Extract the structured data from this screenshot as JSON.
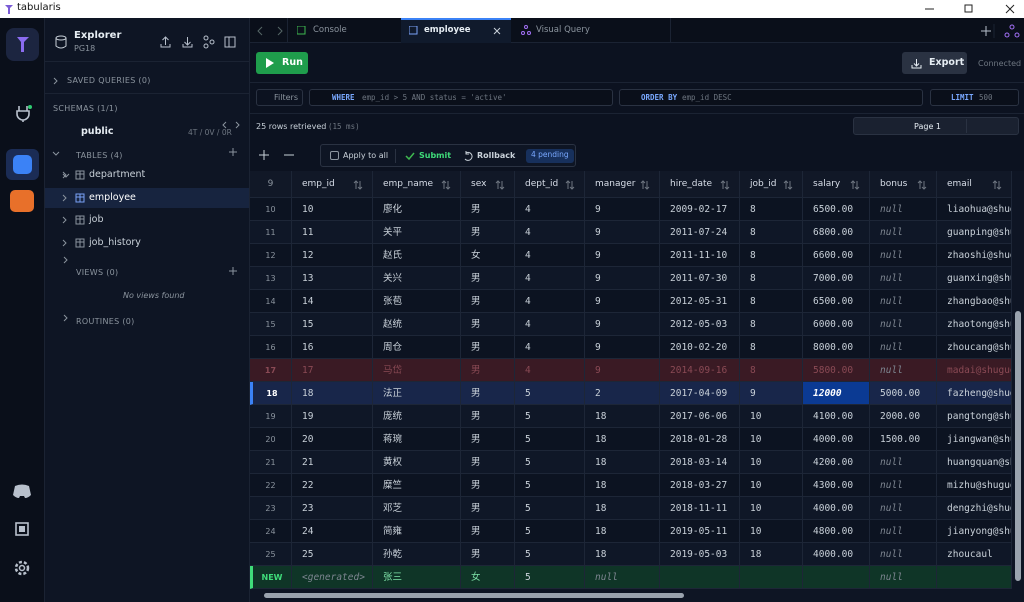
{
  "window": {
    "title": "tabularis"
  },
  "explorer": {
    "title": "Explorer",
    "subtitle": "PG18",
    "saved_queries": "SAVED QUERIES (0)",
    "schemas": "SCHEMAS (1/1)",
    "schema": "public",
    "schema_stats": "4T / 0V / 0R",
    "tables_header": "TABLES (4)",
    "tables": [
      "department",
      "employee",
      "job",
      "job_history"
    ],
    "views_header": "VIEWS (0)",
    "views_empty": "No views found",
    "routines_header": "ROUTINES (0)"
  },
  "tabs": [
    "Console",
    "employee",
    "Visual Query"
  ],
  "toolbar": {
    "run": "Run",
    "export": "Export",
    "status": "Connected"
  },
  "filters": {
    "button": "Filters",
    "where_keyword": "WHERE",
    "where": "emp_id > 5 AND status = 'active'",
    "order_keyword": "ORDER BY",
    "order": "emp_id DESC",
    "limit_keyword": "LIMIT",
    "limit": "500"
  },
  "results": {
    "summary": "25 rows retrieved",
    "time": "(15 ms)",
    "page": "Page 1"
  },
  "edits": {
    "apply_all": "Apply to all",
    "submit": "Submit",
    "rollback": "Rollback",
    "pending": "4 pending"
  },
  "grid": {
    "header_row": "9",
    "columns": [
      "emp_id",
      "emp_name",
      "sex",
      "dept_id",
      "manager",
      "hire_date",
      "job_id",
      "salary",
      "bonus",
      "email"
    ],
    "rows": [
      {
        "row": "10",
        "cells": [
          "10",
          "廖化",
          "男",
          "4",
          "9",
          "2009-02-17",
          "8",
          "6500.00",
          "null",
          "liaohua@shug"
        ]
      },
      {
        "row": "11",
        "cells": [
          "11",
          "关平",
          "男",
          "4",
          "9",
          "2011-07-24",
          "8",
          "6800.00",
          "null",
          "guanping@shug"
        ]
      },
      {
        "row": "12",
        "cells": [
          "12",
          "赵氏",
          "女",
          "4",
          "9",
          "2011-11-10",
          "8",
          "6600.00",
          "null",
          "zhaoshi@shug"
        ]
      },
      {
        "row": "13",
        "cells": [
          "13",
          "关兴",
          "男",
          "4",
          "9",
          "2011-07-30",
          "8",
          "7000.00",
          "null",
          "guanxing@shug"
        ]
      },
      {
        "row": "14",
        "cells": [
          "14",
          "张苞",
          "男",
          "4",
          "9",
          "2012-05-31",
          "8",
          "6500.00",
          "null",
          "zhangbao@shug"
        ]
      },
      {
        "row": "15",
        "cells": [
          "15",
          "赵统",
          "男",
          "4",
          "9",
          "2012-05-03",
          "8",
          "6000.00",
          "null",
          "zhaotong@shug"
        ]
      },
      {
        "row": "16",
        "cells": [
          "16",
          "周仓",
          "男",
          "4",
          "9",
          "2010-02-20",
          "8",
          "8000.00",
          "null",
          "zhoucang@shug"
        ]
      },
      {
        "row": "17",
        "state": "deleted",
        "cells": [
          "17",
          "马岱",
          "男",
          "4",
          "9",
          "2014-09-16",
          "8",
          "5800.00",
          "null",
          "madai@shuguo"
        ]
      },
      {
        "row": "18",
        "state": "selected",
        "edited": 7,
        "cells": [
          "18",
          "法正",
          "男",
          "5",
          "2",
          "2017-04-09",
          "9",
          "12000",
          "5000.00",
          "fazheng@shug"
        ]
      },
      {
        "row": "19",
        "cells": [
          "19",
          "庞统",
          "男",
          "5",
          "18",
          "2017-06-06",
          "10",
          "4100.00",
          "2000.00",
          "pangtong@shug"
        ]
      },
      {
        "row": "20",
        "cells": [
          "20",
          "蒋琬",
          "男",
          "5",
          "18",
          "2018-01-28",
          "10",
          "4000.00",
          "1500.00",
          "jiangwan@shug"
        ]
      },
      {
        "row": "21",
        "cells": [
          "21",
          "黄权",
          "男",
          "5",
          "18",
          "2018-03-14",
          "10",
          "4200.00",
          "null",
          "huangquan@sh"
        ]
      },
      {
        "row": "22",
        "cells": [
          "22",
          "糜竺",
          "男",
          "5",
          "18",
          "2018-03-27",
          "10",
          "4300.00",
          "null",
          "mizhu@shuguo"
        ]
      },
      {
        "row": "23",
        "cells": [
          "23",
          "邓芝",
          "男",
          "5",
          "18",
          "2018-11-11",
          "10",
          "4000.00",
          "null",
          "dengzhi@shug"
        ]
      },
      {
        "row": "24",
        "cells": [
          "24",
          "简雍",
          "男",
          "5",
          "18",
          "2019-05-11",
          "10",
          "4800.00",
          "null",
          "jianyong@shu"
        ]
      },
      {
        "row": "25",
        "cells": [
          "25",
          "孙乾",
          "男",
          "5",
          "18",
          "2019-05-03",
          "18",
          "4000.00",
          "null",
          "zhoucaul"
        ]
      },
      {
        "row": "NEW",
        "state": "new",
        "cells": [
          "<generated>",
          "张三",
          "女",
          "5",
          "null",
          null,
          null,
          null,
          "null",
          null
        ]
      }
    ]
  }
}
